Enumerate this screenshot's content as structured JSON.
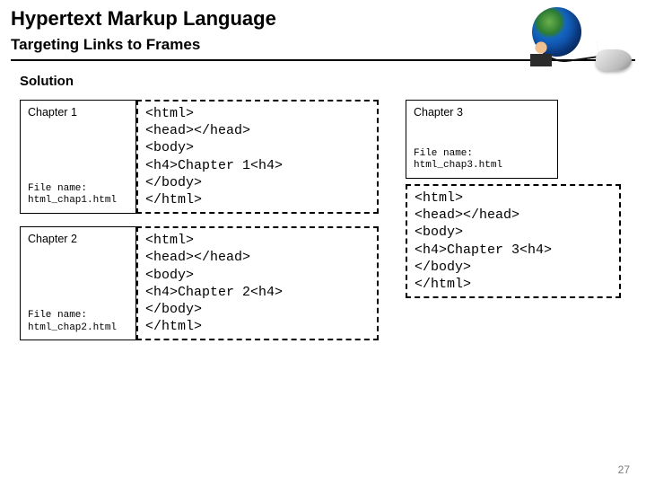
{
  "header": {
    "title": "Hypertext Markup Language",
    "subtitle": "Targeting Links to Frames"
  },
  "solution_label": "Solution",
  "chapters": {
    "ch1": {
      "label": "Chapter 1",
      "file_label": "File name:",
      "file_name": "html_chap1.html",
      "code": "<html>\n<head></head>\n<body>\n<h4>Chapter 1<h4>\n</body>\n</html>"
    },
    "ch2": {
      "label": "Chapter 2",
      "file_label": "File name:",
      "file_name": "html_chap2.html",
      "code": "<html>\n<head></head>\n<body>\n<h4>Chapter 2<h4>\n</body>\n</html>"
    },
    "ch3": {
      "label": "Chapter 3",
      "file_label": "File name:",
      "file_name": "html_chap3.html",
      "code": "<html>\n<head></head>\n<body>\n<h4>Chapter 3<h4>\n</body>\n</html>"
    }
  },
  "page_number": "27",
  "colors": {
    "text": "#000000",
    "background": "#ffffff",
    "pagenum": "#7a7a7a",
    "border": "#000000"
  }
}
